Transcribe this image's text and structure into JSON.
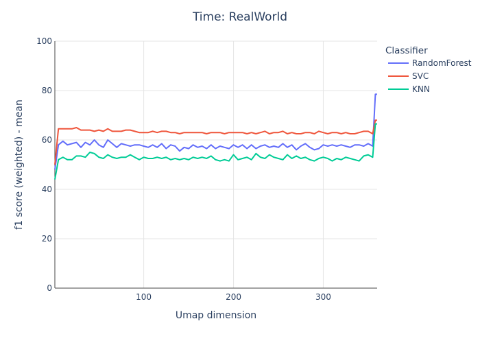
{
  "chart_data": {
    "type": "line",
    "title": "Time: RealWorld",
    "xlabel": "Umap dimension",
    "ylabel": "f1 score (weighted) - mean",
    "xlim": [
      1,
      360
    ],
    "ylim": [
      0,
      100
    ],
    "x_ticks": [
      100,
      200,
      300
    ],
    "x_tick_labels": [
      "100",
      "200",
      "300"
    ],
    "y_ticks": [
      0,
      20,
      40,
      60,
      80,
      100
    ],
    "y_tick_labels": [
      "0",
      "20",
      "40",
      "60",
      "80",
      "100"
    ],
    "grid": true,
    "legend": {
      "title": "Classifier",
      "placement": "right"
    },
    "series": [
      {
        "name": "RandomForest",
        "color": "#636efa",
        "x": [
          1,
          5,
          10,
          15,
          20,
          25,
          30,
          35,
          40,
          45,
          50,
          55,
          60,
          65,
          70,
          75,
          80,
          85,
          90,
          95,
          100,
          105,
          110,
          115,
          120,
          125,
          130,
          135,
          140,
          145,
          150,
          155,
          160,
          165,
          170,
          175,
          180,
          185,
          190,
          195,
          200,
          205,
          210,
          215,
          220,
          225,
          230,
          235,
          240,
          245,
          250,
          255,
          260,
          265,
          270,
          275,
          280,
          285,
          290,
          295,
          300,
          305,
          310,
          315,
          320,
          325,
          330,
          335,
          340,
          345,
          350,
          355,
          358,
          360
        ],
        "values": [
          48,
          58,
          59.5,
          58,
          58.5,
          59,
          57,
          59,
          58,
          60,
          58,
          57,
          60,
          58.5,
          57,
          58.5,
          58,
          57.5,
          58,
          58,
          57.5,
          57,
          58,
          57,
          58.5,
          56.5,
          58,
          57.5,
          55.5,
          57,
          56.5,
          58,
          57,
          57.5,
          56.5,
          58,
          56.5,
          57.5,
          57,
          56.5,
          58,
          57,
          58,
          56.5,
          58,
          56.5,
          57.5,
          58,
          57,
          57.5,
          57,
          58.5,
          57,
          58,
          56,
          57.5,
          58.5,
          57,
          56,
          56.5,
          58,
          57.5,
          58,
          57.5,
          58,
          57.5,
          57,
          58,
          58,
          57.5,
          58.5,
          57.5,
          78.5,
          78.5
        ]
      },
      {
        "name": "SVC",
        "color": "#ef553b",
        "x": [
          1,
          5,
          10,
          15,
          20,
          25,
          30,
          35,
          40,
          45,
          50,
          55,
          60,
          65,
          70,
          75,
          80,
          85,
          90,
          95,
          100,
          105,
          110,
          115,
          120,
          125,
          130,
          135,
          140,
          145,
          150,
          155,
          160,
          165,
          170,
          175,
          180,
          185,
          190,
          195,
          200,
          205,
          210,
          215,
          220,
          225,
          230,
          235,
          240,
          245,
          250,
          255,
          260,
          265,
          270,
          275,
          280,
          285,
          290,
          295,
          300,
          305,
          310,
          315,
          320,
          325,
          330,
          335,
          340,
          345,
          350,
          355,
          358,
          360
        ],
        "values": [
          50,
          64.5,
          64.5,
          64.5,
          64.5,
          65,
          64,
          64,
          64,
          63.5,
          64,
          63.5,
          64.5,
          63.5,
          63.5,
          63.5,
          64,
          64,
          63.5,
          63,
          63,
          63,
          63.5,
          63,
          63.5,
          63.5,
          63,
          63,
          62.5,
          63,
          63,
          63,
          63,
          63,
          62.5,
          63,
          63,
          63,
          62.5,
          63,
          63,
          63,
          63,
          62.5,
          63,
          62.5,
          63,
          63.5,
          62.5,
          63,
          63,
          63.5,
          62.5,
          63,
          62.5,
          62.5,
          63,
          63,
          62.5,
          63.5,
          63,
          62.5,
          63,
          63,
          62.5,
          63,
          62.5,
          62.5,
          63,
          63.5,
          63.5,
          62.5,
          68,
          68
        ]
      },
      {
        "name": "KNN",
        "color": "#00cc96",
        "x": [
          1,
          5,
          10,
          15,
          20,
          25,
          30,
          35,
          40,
          45,
          50,
          55,
          60,
          65,
          70,
          75,
          80,
          85,
          90,
          95,
          100,
          105,
          110,
          115,
          120,
          125,
          130,
          135,
          140,
          145,
          150,
          155,
          160,
          165,
          170,
          175,
          180,
          185,
          190,
          195,
          200,
          205,
          210,
          215,
          220,
          225,
          230,
          235,
          240,
          245,
          250,
          255,
          260,
          265,
          270,
          275,
          280,
          285,
          290,
          295,
          300,
          305,
          310,
          315,
          320,
          325,
          330,
          335,
          340,
          345,
          350,
          355,
          358,
          360
        ],
        "values": [
          44,
          52,
          53,
          52,
          52,
          53.5,
          53.5,
          53,
          55,
          54.5,
          53,
          52.5,
          54,
          53,
          52.5,
          53,
          53,
          54,
          53,
          52,
          53,
          52.5,
          52.5,
          53,
          52.5,
          53,
          52,
          52.5,
          52,
          52.5,
          52,
          53,
          52.5,
          53,
          52.5,
          53.5,
          52,
          51.5,
          52,
          51.5,
          54,
          52,
          52.5,
          53,
          52,
          54.5,
          53,
          52.5,
          54,
          53,
          52.5,
          52,
          54,
          52.5,
          53.5,
          52.5,
          53,
          52,
          51.5,
          52.5,
          53,
          52.5,
          51.5,
          52.5,
          52,
          53,
          52.5,
          52,
          51.5,
          53.5,
          54,
          53,
          66.5,
          66.5
        ]
      }
    ]
  }
}
